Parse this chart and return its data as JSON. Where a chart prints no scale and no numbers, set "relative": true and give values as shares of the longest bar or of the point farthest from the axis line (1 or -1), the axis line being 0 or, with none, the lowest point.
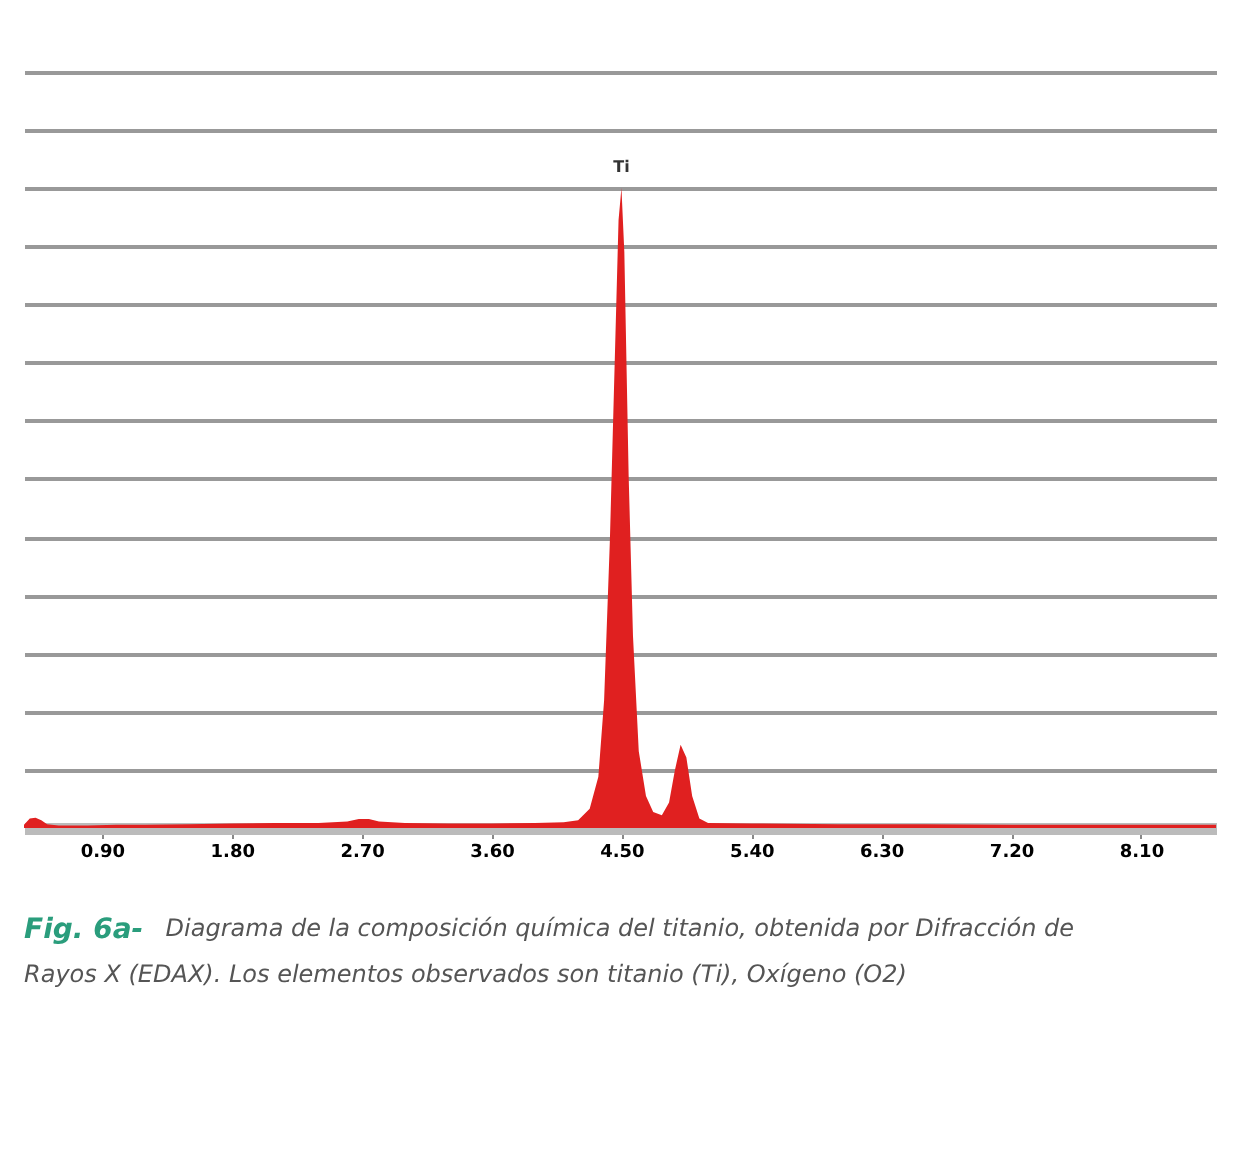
{
  "chart_data": {
    "type": "area",
    "relative": true,
    "grid": "y",
    "tick_labels": "x",
    "xlim": [
      0.36,
      8.62
    ],
    "xticks": [
      {
        "value": 0.9,
        "label": "0.90"
      },
      {
        "value": 1.8,
        "label": "1.80"
      },
      {
        "value": 2.7,
        "label": "2.70"
      },
      {
        "value": 3.6,
        "label": "3.60"
      },
      {
        "value": 4.5,
        "label": "4.50"
      },
      {
        "value": 5.4,
        "label": "5.40"
      },
      {
        "value": 6.3,
        "label": "6.30"
      },
      {
        "value": 7.2,
        "label": "7.20"
      },
      {
        "value": 8.1,
        "label": "8.10"
      }
    ],
    "series": [
      {
        "color": "#e02020",
        "x": [
          0.36,
          0.4,
          0.44,
          0.48,
          0.52,
          0.6,
          0.8,
          1.0,
          1.2,
          1.5,
          1.8,
          2.1,
          2.4,
          2.6,
          2.68,
          2.75,
          2.82,
          3.0,
          3.3,
          3.6,
          3.9,
          4.1,
          4.2,
          4.28,
          4.34,
          4.38,
          4.42,
          4.45,
          4.48,
          4.5,
          4.52,
          4.55,
          4.58,
          4.62,
          4.67,
          4.72,
          4.78,
          4.83,
          4.87,
          4.91,
          4.95,
          4.99,
          5.04,
          5.1,
          5.4,
          6.0,
          6.6,
          7.2,
          7.8,
          8.4,
          8.62
        ],
        "values": [
          0.005,
          0.015,
          0.016,
          0.012,
          0.006,
          0.004,
          0.004,
          0.005,
          0.005,
          0.006,
          0.007,
          0.008,
          0.008,
          0.01,
          0.014,
          0.014,
          0.01,
          0.008,
          0.007,
          0.007,
          0.008,
          0.009,
          0.012,
          0.03,
          0.08,
          0.2,
          0.45,
          0.7,
          0.95,
          1.0,
          0.9,
          0.55,
          0.3,
          0.12,
          0.05,
          0.025,
          0.02,
          0.04,
          0.09,
          0.13,
          0.11,
          0.05,
          0.015,
          0.008,
          0.007,
          0.006,
          0.006,
          0.005,
          0.005,
          0.005,
          0.005
        ]
      }
    ],
    "annotations": [
      {
        "text": "Ti",
        "x": 4.5,
        "y": 1
      },
      "Fig. 6a-",
      "Diagrama de la composición química del titanio, obtenida por Difracción de Rayos X (EDAX). Los elementos observados son titanio (Ti), Oxígeno (O2)"
    ]
  }
}
